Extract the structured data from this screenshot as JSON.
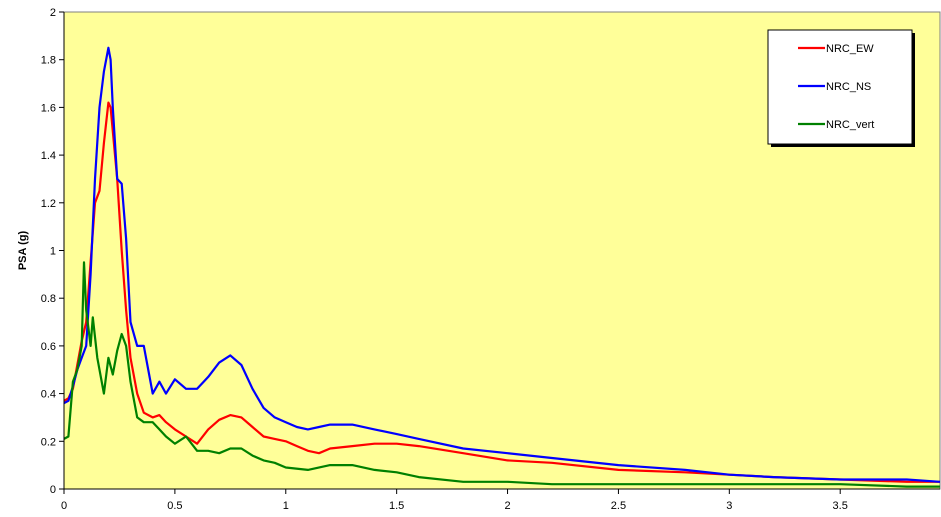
{
  "chart_data": {
    "type": "line",
    "title": "",
    "xlabel": "",
    "ylabel": "PSA (g)",
    "xlim": [
      0,
      3.95
    ],
    "ylim": [
      0,
      2
    ],
    "x_ticks": [
      "0",
      "0.5",
      "1",
      "1.5",
      "2",
      "2.5",
      "3",
      "3.5"
    ],
    "x_tick_values": [
      0,
      0.5,
      1,
      1.5,
      2,
      2.5,
      3,
      3.5
    ],
    "y_ticks": [
      "0",
      "0.2",
      "0.4",
      "0.6",
      "0.8",
      "1",
      "1.2",
      "1.4",
      "1.6",
      "1.8",
      "2"
    ],
    "y_tick_values": [
      0,
      0.2,
      0.4,
      0.6,
      0.8,
      1,
      1.2,
      1.4,
      1.6,
      1.8,
      2
    ],
    "grid": false,
    "legend_position": "top-right",
    "plot_background": "#FFFF99",
    "series": [
      {
        "name": "NRC_EW",
        "color": "#FF0000",
        "x": [
          0,
          0.02,
          0.04,
          0.06,
          0.08,
          0.1,
          0.12,
          0.14,
          0.16,
          0.18,
          0.2,
          0.21,
          0.22,
          0.24,
          0.26,
          0.28,
          0.3,
          0.33,
          0.36,
          0.4,
          0.43,
          0.46,
          0.5,
          0.55,
          0.6,
          0.65,
          0.7,
          0.75,
          0.8,
          0.85,
          0.9,
          0.95,
          1.0,
          1.05,
          1.1,
          1.15,
          1.2,
          1.3,
          1.4,
          1.5,
          1.6,
          1.8,
          2.0,
          2.2,
          2.5,
          2.8,
          3.0,
          3.2,
          3.5,
          3.8,
          3.95
        ],
        "y": [
          0.37,
          0.38,
          0.42,
          0.52,
          0.62,
          0.7,
          0.95,
          1.2,
          1.25,
          1.45,
          1.62,
          1.6,
          1.5,
          1.3,
          1.0,
          0.75,
          0.55,
          0.4,
          0.32,
          0.3,
          0.31,
          0.28,
          0.25,
          0.22,
          0.19,
          0.25,
          0.29,
          0.31,
          0.3,
          0.26,
          0.22,
          0.21,
          0.2,
          0.18,
          0.16,
          0.15,
          0.17,
          0.18,
          0.19,
          0.19,
          0.18,
          0.15,
          0.12,
          0.11,
          0.08,
          0.07,
          0.06,
          0.05,
          0.04,
          0.03,
          0.03
        ]
      },
      {
        "name": "NRC_NS",
        "color": "#0000FF",
        "x": [
          0,
          0.02,
          0.04,
          0.06,
          0.08,
          0.1,
          0.12,
          0.14,
          0.16,
          0.18,
          0.2,
          0.21,
          0.22,
          0.24,
          0.26,
          0.28,
          0.3,
          0.33,
          0.36,
          0.4,
          0.43,
          0.46,
          0.5,
          0.55,
          0.6,
          0.65,
          0.7,
          0.75,
          0.8,
          0.85,
          0.9,
          0.95,
          1.0,
          1.05,
          1.1,
          1.15,
          1.2,
          1.3,
          1.4,
          1.5,
          1.6,
          1.8,
          2.0,
          2.2,
          2.5,
          2.8,
          3.0,
          3.2,
          3.5,
          3.8,
          3.95
        ],
        "y": [
          0.36,
          0.37,
          0.43,
          0.5,
          0.55,
          0.6,
          0.9,
          1.3,
          1.6,
          1.75,
          1.85,
          1.8,
          1.6,
          1.3,
          1.28,
          1.05,
          0.7,
          0.6,
          0.6,
          0.4,
          0.45,
          0.4,
          0.46,
          0.42,
          0.42,
          0.47,
          0.53,
          0.56,
          0.52,
          0.42,
          0.34,
          0.3,
          0.28,
          0.26,
          0.25,
          0.26,
          0.27,
          0.27,
          0.25,
          0.23,
          0.21,
          0.17,
          0.15,
          0.13,
          0.1,
          0.08,
          0.06,
          0.05,
          0.04,
          0.04,
          0.03
        ]
      },
      {
        "name": "NRC_vert",
        "color": "#008000",
        "x": [
          0,
          0.02,
          0.04,
          0.06,
          0.08,
          0.09,
          0.1,
          0.12,
          0.13,
          0.15,
          0.17,
          0.18,
          0.2,
          0.22,
          0.24,
          0.26,
          0.28,
          0.3,
          0.33,
          0.36,
          0.4,
          0.43,
          0.46,
          0.5,
          0.55,
          0.6,
          0.65,
          0.7,
          0.75,
          0.8,
          0.85,
          0.9,
          0.95,
          1.0,
          1.1,
          1.2,
          1.3,
          1.4,
          1.5,
          1.6,
          1.8,
          2.0,
          2.2,
          2.5,
          2.8,
          3.0,
          3.2,
          3.5,
          3.8,
          3.95
        ],
        "y": [
          0.21,
          0.22,
          0.45,
          0.5,
          0.6,
          0.95,
          0.75,
          0.6,
          0.72,
          0.55,
          0.45,
          0.4,
          0.55,
          0.48,
          0.58,
          0.65,
          0.6,
          0.45,
          0.3,
          0.28,
          0.28,
          0.25,
          0.22,
          0.19,
          0.22,
          0.16,
          0.16,
          0.15,
          0.17,
          0.17,
          0.14,
          0.12,
          0.11,
          0.09,
          0.08,
          0.1,
          0.1,
          0.08,
          0.07,
          0.05,
          0.03,
          0.03,
          0.02,
          0.02,
          0.02,
          0.02,
          0.02,
          0.02,
          0.01,
          0.01
        ]
      }
    ]
  }
}
